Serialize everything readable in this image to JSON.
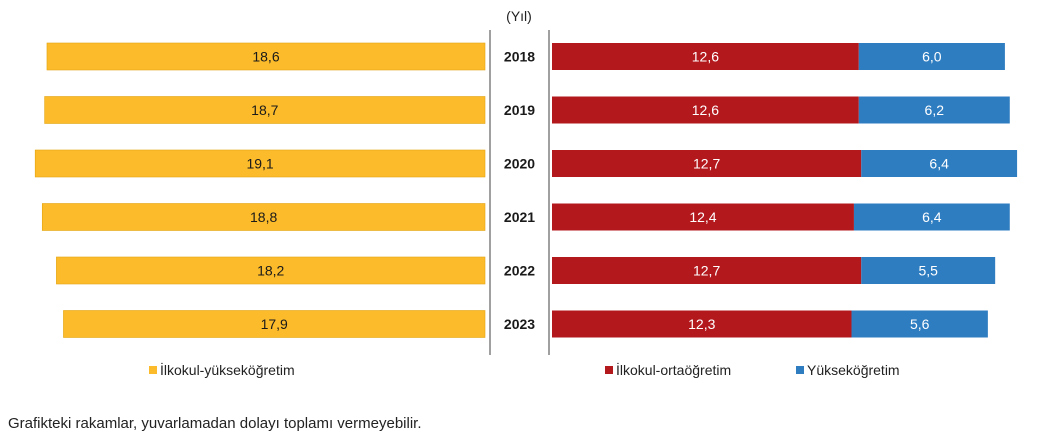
{
  "chart_data": {
    "type": "bar",
    "orientation": "horizontal",
    "axis_label": "(Yıl)",
    "categories": [
      "2018",
      "2019",
      "2020",
      "2021",
      "2022",
      "2023"
    ],
    "left_series": {
      "name": "İlkokul-yükseköğretim",
      "values": [
        18.6,
        18.7,
        19.1,
        18.8,
        18.2,
        17.9
      ],
      "labels": [
        "18,6",
        "18,7",
        "19,1",
        "18,8",
        "18,2",
        "17,9"
      ]
    },
    "right_series": [
      {
        "name": "İlkokul-ortaöğretim",
        "values": [
          12.6,
          12.6,
          12.7,
          12.4,
          12.7,
          12.3
        ],
        "labels": [
          "12,6",
          "12,6",
          "12,7",
          "12,4",
          "12,7",
          "12,3"
        ]
      },
      {
        "name": "Yükseköğretim",
        "values": [
          6.0,
          6.2,
          6.4,
          6.4,
          5.5,
          5.6
        ],
        "labels": [
          "6,0",
          "6,2",
          "6,4",
          "6,4",
          "5,5",
          "5,6"
        ]
      }
    ],
    "stacked_right": true,
    "grid": false,
    "legend_position": "bottom",
    "colors": {
      "left": "#fbbb2b",
      "right_stack": [
        "#b3181d",
        "#2f7dc1"
      ]
    }
  },
  "footnote": "Grafikteki rakamlar, yuvarlamadan dolayı toplamı vermeyebilir."
}
